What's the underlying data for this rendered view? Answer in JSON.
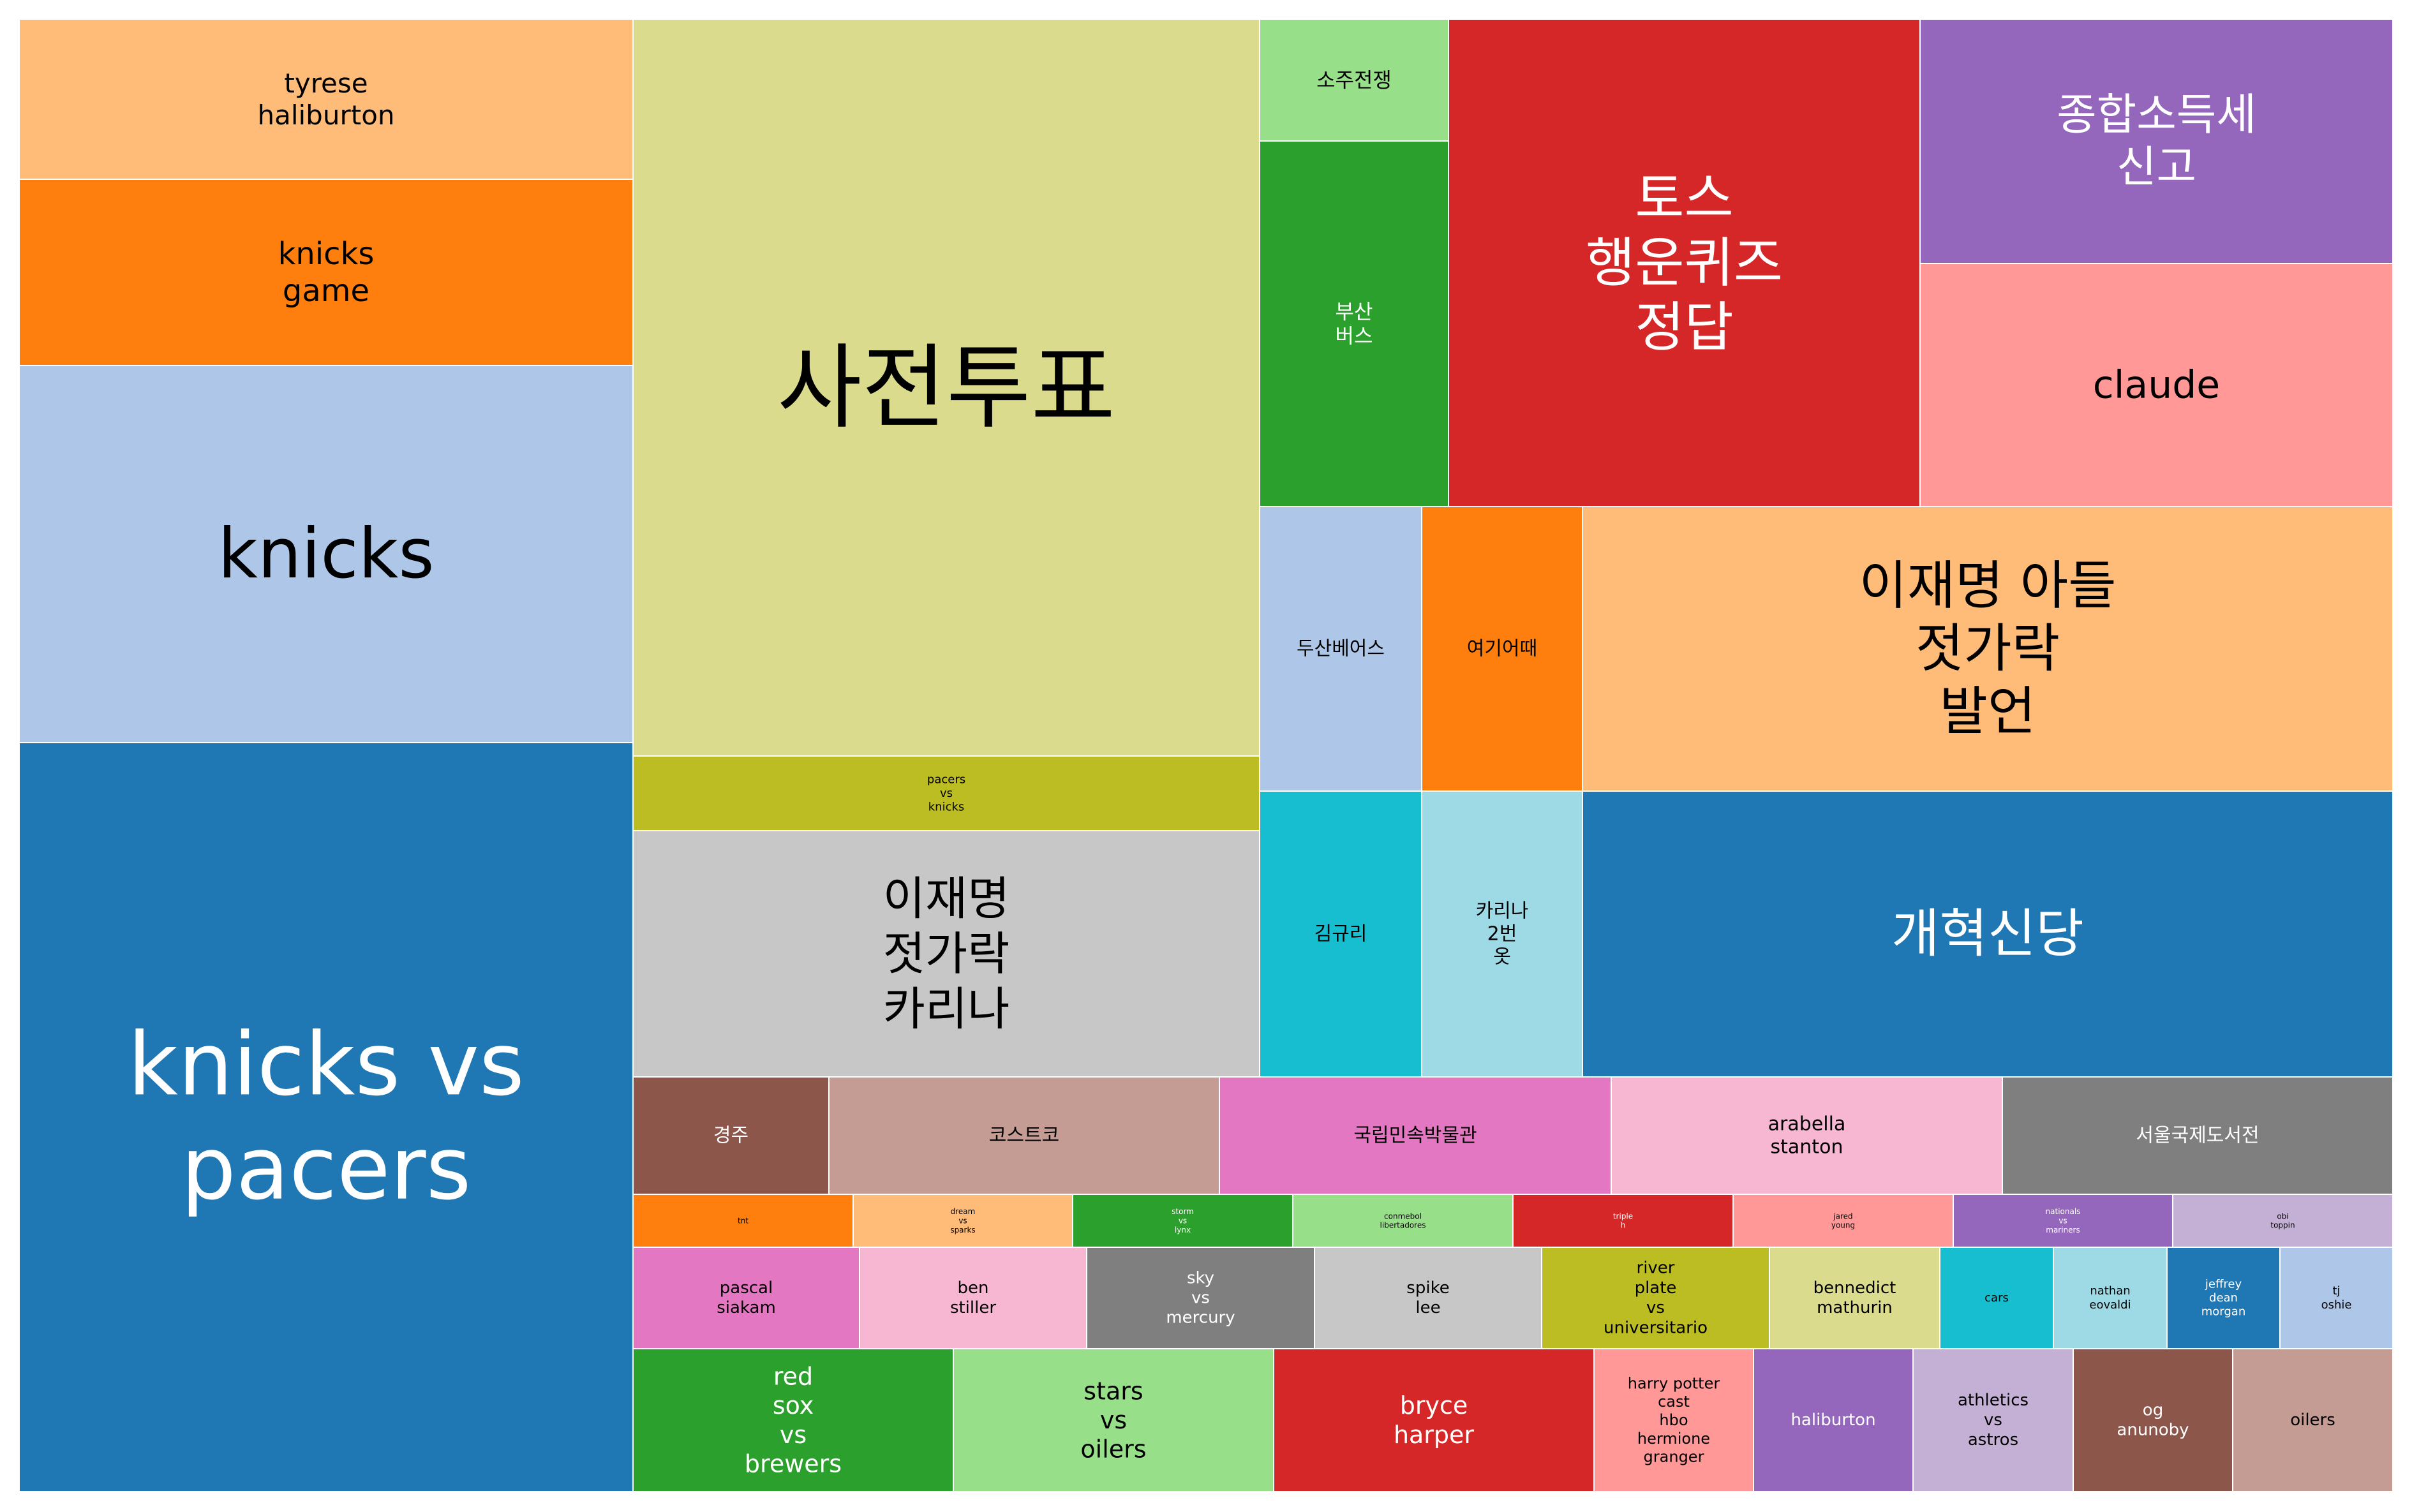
{
  "chart_data": {
    "type": "treemap",
    "title": "",
    "tiles": [
      {
        "label": "knicks vs pacers",
        "lines": [
          "knicks vs",
          "pacers"
        ],
        "value": 1580,
        "color": "#1f77b4",
        "text_color": "#ffffff"
      },
      {
        "label": "knicks",
        "lines": [
          "knicks"
        ],
        "value": 1004,
        "color": "#aec7e8",
        "text_color": "#000000"
      },
      {
        "label": "knicks game",
        "lines": [
          "knicks",
          "game"
        ],
        "value": 500,
        "color": "#ff7f0e",
        "text_color": "#000000"
      },
      {
        "label": "tyrese haliburton",
        "lines": [
          "tyrese",
          "haliburton"
        ],
        "value": 423,
        "color": "#ffbb78",
        "text_color": "#000000"
      },
      {
        "label": "사전투표",
        "lines": [
          "사전투표"
        ],
        "value": 1995,
        "color": "#dbdb8d",
        "text_color": "#000000"
      },
      {
        "label": "pacers vs knicks",
        "lines": [
          "pacers",
          "vs",
          "knicks"
        ],
        "value": 199,
        "color": "#bcbd22",
        "text_color": "#000000"
      },
      {
        "label": "이재명 젓가락 카리나",
        "lines": [
          "이재명",
          "젓가락",
          "카리나"
        ],
        "value": 668,
        "color": "#c7c7c7",
        "text_color": "#000000"
      },
      {
        "label": "소주전쟁",
        "lines": [
          "소주전쟁"
        ],
        "value": 98,
        "color": "#98df8a",
        "text_color": "#000000"
      },
      {
        "label": "부산 버스",
        "lines": [
          "부산",
          "버스"
        ],
        "value": 299,
        "color": "#2ca02c",
        "text_color": "#ffffff"
      },
      {
        "label": "토스 행운퀴즈 정답",
        "lines": [
          "토스",
          "행운퀴즈",
          "정답"
        ],
        "value": 985,
        "color": "#d62728",
        "text_color": "#ffffff"
      },
      {
        "label": "종합소득세 신고",
        "lines": [
          "종합소득세",
          "신고"
        ],
        "value": 504,
        "color": "#9467bd",
        "text_color": "#ffffff"
      },
      {
        "label": "claude",
        "lines": [
          "claude"
        ],
        "value": 500,
        "color": "#ff9896",
        "text_color": "#000000"
      },
      {
        "label": "두산베어스",
        "lines": [
          "두산베어스"
        ],
        "value": 200,
        "color": "#aec7e8",
        "text_color": "#000000"
      },
      {
        "label": "여기어때",
        "lines": [
          "여기어때"
        ],
        "value": 200,
        "color": "#ff7f0e",
        "text_color": "#000000"
      },
      {
        "label": "이재명 아들 젓가락 발언",
        "lines": [
          "이재명 아들",
          "젓가락",
          "발언"
        ],
        "value": 550,
        "color": "#ffbb78",
        "text_color": "#000000"
      },
      {
        "label": "김규리",
        "lines": [
          "김규리"
        ],
        "value": 200,
        "color": "#17becf",
        "text_color": "#000000"
      },
      {
        "label": "카리나 2번 옷",
        "lines": [
          "카리나",
          "2번",
          "옷"
        ],
        "value": 200,
        "color": "#9edae5",
        "text_color": "#000000"
      },
      {
        "label": "개혁신당",
        "lines": [
          "개혁신당"
        ],
        "value": 550,
        "color": "#1f77b4",
        "text_color": "#ffffff"
      },
      {
        "label": "경주",
        "lines": [
          "경주"
        ],
        "value": 100,
        "color": "#8c564b",
        "text_color": "#ffffff"
      },
      {
        "label": "코스트코",
        "lines": [
          "코스트코"
        ],
        "value": 200,
        "color": "#c49c94",
        "text_color": "#000000"
      },
      {
        "label": "국립민속박물관",
        "lines": [
          "국립민속박물관"
        ],
        "value": 200,
        "color": "#e377c2",
        "text_color": "#000000"
      },
      {
        "label": "arabella stanton",
        "lines": [
          "arabella",
          "stanton"
        ],
        "value": 200,
        "color": "#f7b6d2",
        "text_color": "#000000"
      },
      {
        "label": "서울국제도서전",
        "lines": [
          "서울국제도서전"
        ],
        "value": 200,
        "color": "#7f7f7f",
        "text_color": "#ffffff"
      },
      {
        "label": "tnt",
        "lines": [
          "tnt"
        ],
        "value": 50,
        "color": "#ff7f0e",
        "text_color": "#000000"
      },
      {
        "label": "dream vs sparks",
        "lines": [
          "dream",
          "vs",
          "sparks"
        ],
        "value": 50,
        "color": "#ffbb78",
        "text_color": "#000000"
      },
      {
        "label": "storm vs lynx",
        "lines": [
          "storm",
          "vs",
          "lynx"
        ],
        "value": 50,
        "color": "#2ca02c",
        "text_color": "#ffffff"
      },
      {
        "label": "conmebol libertadores",
        "lines": [
          "conmebol",
          "libertadores"
        ],
        "value": 50,
        "color": "#98df8a",
        "text_color": "#000000"
      },
      {
        "label": "triple h",
        "lines": [
          "triple",
          "h"
        ],
        "value": 50,
        "color": "#d62728",
        "text_color": "#ffffff"
      },
      {
        "label": "jared young",
        "lines": [
          "jared",
          "young"
        ],
        "value": 50,
        "color": "#ff9896",
        "text_color": "#000000"
      },
      {
        "label": "nationals vs mariners",
        "lines": [
          "nationals",
          "vs",
          "mariners"
        ],
        "value": 50,
        "color": "#9467bd",
        "text_color": "#ffffff"
      },
      {
        "label": "obi toppin",
        "lines": [
          "obi",
          "toppin"
        ],
        "value": 50,
        "color": "#c5b0d5",
        "text_color": "#000000"
      },
      {
        "label": "pascal siakam",
        "lines": [
          "pascal",
          "siakam"
        ],
        "value": 100,
        "color": "#e377c2",
        "text_color": "#000000"
      },
      {
        "label": "ben stiller",
        "lines": [
          "ben",
          "stiller"
        ],
        "value": 100,
        "color": "#f7b6d2",
        "text_color": "#000000"
      },
      {
        "label": "sky vs mercury",
        "lines": [
          "sky",
          "vs",
          "mercury"
        ],
        "value": 100,
        "color": "#7f7f7f",
        "text_color": "#ffffff"
      },
      {
        "label": "spike lee",
        "lines": [
          "spike",
          "lee"
        ],
        "value": 100,
        "color": "#c7c7c7",
        "text_color": "#000000"
      },
      {
        "label": "river plate vs universitario",
        "lines": [
          "river",
          "plate",
          "vs",
          "universitario"
        ],
        "value": 100,
        "color": "#bcbd22",
        "text_color": "#000000"
      },
      {
        "label": "bennedict mathurin",
        "lines": [
          "bennedict",
          "mathurin"
        ],
        "value": 100,
        "color": "#dbdb8d",
        "text_color": "#000000"
      },
      {
        "label": "cars",
        "lines": [
          "cars"
        ],
        "value": 50,
        "color": "#17becf",
        "text_color": "#000000"
      },
      {
        "label": "nathan eovaldi",
        "lines": [
          "nathan",
          "eovaldi"
        ],
        "value": 50,
        "color": "#9edae5",
        "text_color": "#000000"
      },
      {
        "label": "jeffrey dean morgan",
        "lines": [
          "jeffrey",
          "dean",
          "morgan"
        ],
        "value": 50,
        "color": "#1f77b4",
        "text_color": "#ffffff"
      },
      {
        "label": "tj oshie",
        "lines": [
          "tj",
          "oshie"
        ],
        "value": 50,
        "color": "#aec7e8",
        "text_color": "#000000"
      },
      {
        "label": "red sox vs brewers",
        "lines": [
          "red",
          "sox",
          "vs",
          "brewers"
        ],
        "value": 200,
        "color": "#2ca02c",
        "text_color": "#ffffff"
      },
      {
        "label": "stars vs oilers",
        "lines": [
          "stars",
          "vs",
          "oilers"
        ],
        "value": 200,
        "color": "#98df8a",
        "text_color": "#000000"
      },
      {
        "label": "bryce harper",
        "lines": [
          "bryce",
          "harper"
        ],
        "value": 200,
        "color": "#d62728",
        "text_color": "#ffffff"
      },
      {
        "label": "harry potter cast hbo hermione granger",
        "lines": [
          "harry potter",
          "cast",
          "hbo",
          "hermione",
          "granger"
        ],
        "value": 100,
        "color": "#ff9896",
        "text_color": "#000000"
      },
      {
        "label": "haliburton",
        "lines": [
          "haliburton"
        ],
        "value": 100,
        "color": "#9467bd",
        "text_color": "#ffffff"
      },
      {
        "label": "athletics vs astros",
        "lines": [
          "athletics",
          "vs",
          "astros"
        ],
        "value": 100,
        "color": "#c5b0d5",
        "text_color": "#000000"
      },
      {
        "label": "og anunoby",
        "lines": [
          "og",
          "anunoby"
        ],
        "value": 100,
        "color": "#8c564b",
        "text_color": "#ffffff"
      },
      {
        "label": "oilers",
        "lines": [
          "oilers"
        ],
        "value": 100,
        "color": "#c49c94",
        "text_color": "#000000"
      }
    ]
  }
}
